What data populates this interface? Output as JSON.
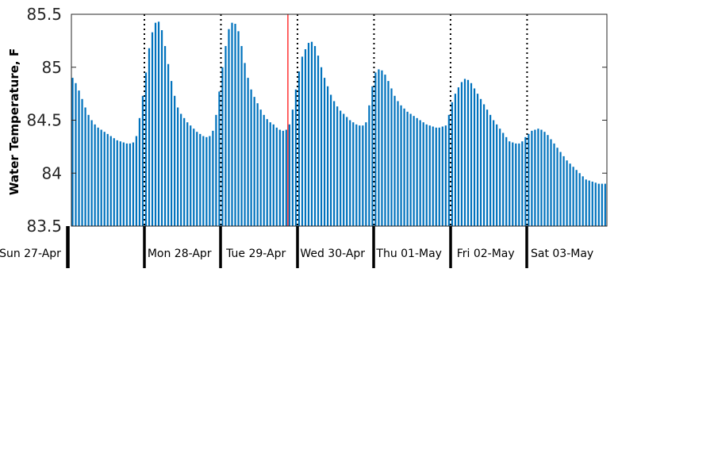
{
  "chart_data": {
    "type": "bar",
    "title": "",
    "xlabel": "",
    "ylabel": "Water Temperature, F",
    "ylim": [
      83.5,
      85.5
    ],
    "yticks": [
      "83.5",
      "84",
      "84.5",
      "85",
      "85.5"
    ],
    "grid": false,
    "legend": "none",
    "bar_color": "#0072bd",
    "sample_interval_hours": 1,
    "day_labels": [
      "Sun 27-Apr",
      "Mon 28-Apr",
      "Tue 29-Apr",
      "Wed 30-Apr",
      "Thu 01-May",
      "Fri 02-May",
      "Sat 03-May"
    ],
    "midnight_markers": [
      "Mon 28-Apr",
      "Tue 29-Apr",
      "Wed 30-Apr",
      "Thu 01-May",
      "Fri 02-May",
      "Sat 03-May"
    ],
    "current_time_marker": {
      "label": "",
      "day": "Tue 29-Apr",
      "hour": 21,
      "color": "#ff0000"
    },
    "series": [
      {
        "values": [
          84.9,
          84.85,
          84.78,
          84.7,
          84.62,
          84.55,
          84.5,
          84.46,
          84.43,
          84.41,
          84.39,
          84.37,
          84.35,
          84.33,
          84.31,
          84.3,
          84.29,
          84.28,
          84.28,
          84.29,
          84.35,
          84.52,
          84.73,
          84.95,
          85.18,
          85.33,
          85.42,
          85.43,
          85.35,
          85.2,
          85.03,
          84.87,
          84.73,
          84.62,
          84.56,
          84.52,
          84.48,
          84.45,
          84.42,
          84.39,
          84.37,
          84.35,
          84.34,
          84.35,
          84.4,
          84.55,
          84.77,
          85.0,
          85.2,
          85.36,
          85.42,
          85.41,
          85.34,
          85.2,
          85.04,
          84.9,
          84.79,
          84.72,
          84.66,
          84.6,
          84.55,
          84.51,
          84.48,
          84.46,
          84.43,
          84.41,
          84.4,
          84.41,
          84.46,
          84.6,
          84.79,
          84.96,
          85.1,
          85.17,
          85.23,
          85.24,
          85.2,
          85.11,
          85.0,
          84.9,
          84.82,
          84.74,
          84.68,
          84.63,
          84.59,
          84.56,
          84.53,
          84.5,
          84.48,
          84.46,
          84.45,
          84.45,
          84.48,
          84.64,
          84.82,
          84.95,
          84.98,
          84.97,
          84.93,
          84.87,
          84.8,
          84.73,
          84.68,
          84.64,
          84.61,
          84.58,
          84.56,
          84.54,
          84.52,
          84.5,
          84.48,
          84.46,
          84.45,
          84.44,
          84.43,
          84.43,
          84.44,
          84.45,
          84.55,
          84.67,
          84.75,
          84.81,
          84.86,
          84.89,
          84.88,
          84.85,
          84.8,
          84.75,
          84.7,
          84.65,
          84.6,
          84.55,
          84.5,
          84.46,
          84.42,
          84.38,
          84.34,
          84.3,
          84.29,
          84.28,
          84.28,
          84.3,
          84.34,
          84.37,
          84.4,
          84.41,
          84.42,
          84.41,
          84.39,
          84.36,
          84.32,
          84.28,
          84.24,
          84.2,
          84.16,
          84.12,
          84.09,
          84.06,
          84.03,
          84.0,
          83.97,
          83.94,
          83.93,
          83.92,
          83.91,
          83.9,
          83.9,
          83.9,
          83.91
        ]
      }
    ]
  }
}
